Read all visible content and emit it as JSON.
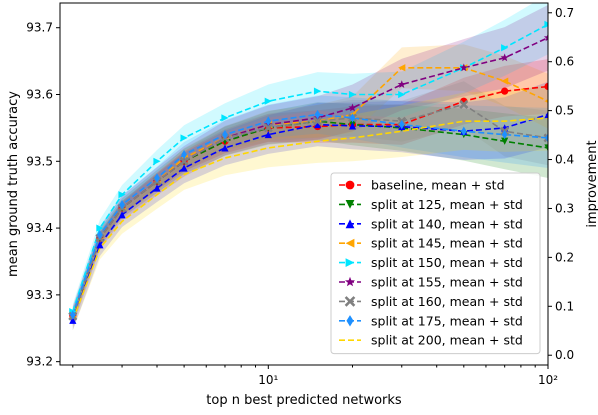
{
  "chart_data": {
    "type": "line",
    "xscale": "log",
    "xlabel": "top n best predicted networks",
    "ylabel": "mean ground truth accuracy",
    "ylabel_right": "improvement",
    "xlim": [
      1.8,
      100
    ],
    "ylim": [
      93.195,
      93.737
    ],
    "ylim_right": [
      -0.02,
      0.72
    ],
    "x_ticks": [
      {
        "value": 10,
        "label": "10¹"
      },
      {
        "value": 100,
        "label": "10²"
      }
    ],
    "y_ticks": [
      {
        "value": 93.2,
        "label": "93.2"
      },
      {
        "value": 93.3,
        "label": "93.3"
      },
      {
        "value": 93.4,
        "label": "93.4"
      },
      {
        "value": 93.5,
        "label": "93.5"
      },
      {
        "value": 93.6,
        "label": "93.6"
      },
      {
        "value": 93.7,
        "label": "93.7"
      }
    ],
    "y_ticks_right": [
      {
        "value": 0.0,
        "label": "0.0"
      },
      {
        "value": 0.1,
        "label": "0.1"
      },
      {
        "value": 0.2,
        "label": "0.2"
      },
      {
        "value": 0.3,
        "label": "0.3"
      },
      {
        "value": 0.4,
        "label": "0.4"
      },
      {
        "value": 0.5,
        "label": "0.5"
      },
      {
        "value": 0.6,
        "label": "0.6"
      },
      {
        "value": 0.7,
        "label": "0.7"
      }
    ],
    "legend_position": "lower-right",
    "grid": false,
    "series": [
      {
        "name": "baseline, mean + std",
        "color": "#ff0000",
        "marker": "circle",
        "points": [
          [
            2,
            93.268
          ],
          [
            2.5,
            93.385
          ],
          [
            3,
            93.43
          ],
          [
            4,
            93.47
          ],
          [
            5,
            93.5
          ],
          [
            7,
            93.53
          ],
          [
            10,
            93.55
          ],
          [
            15,
            93.552
          ],
          [
            20,
            93.555
          ],
          [
            30,
            93.555
          ],
          [
            50,
            93.59
          ],
          [
            70,
            93.605
          ],
          [
            100,
            93.612
          ]
        ]
      },
      {
        "name": "split at 125, mean + std",
        "color": "#008000",
        "marker": "triangle-down",
        "points": [
          [
            2,
            93.268
          ],
          [
            2.5,
            93.385
          ],
          [
            3,
            93.43
          ],
          [
            4,
            93.47
          ],
          [
            5,
            93.5
          ],
          [
            7,
            93.53
          ],
          [
            10,
            93.55
          ],
          [
            15,
            93.56
          ],
          [
            20,
            93.555
          ],
          [
            30,
            93.55
          ],
          [
            50,
            93.54
          ],
          [
            70,
            93.53
          ],
          [
            100,
            93.52
          ]
        ]
      },
      {
        "name": "split at 140, mean + std",
        "color": "#0000ff",
        "marker": "triangle-up",
        "points": [
          [
            2,
            93.262
          ],
          [
            2.5,
            93.375
          ],
          [
            3,
            93.42
          ],
          [
            4,
            93.46
          ],
          [
            5,
            93.49
          ],
          [
            7,
            93.52
          ],
          [
            10,
            93.54
          ],
          [
            15,
            93.555
          ],
          [
            20,
            93.553
          ],
          [
            30,
            93.552
          ],
          [
            50,
            93.545
          ],
          [
            70,
            93.55
          ],
          [
            100,
            93.57
          ]
        ]
      },
      {
        "name": "split at 145, mean + std",
        "color": "#ffa500",
        "marker": "triangle-left",
        "points": [
          [
            2,
            93.268
          ],
          [
            2.5,
            93.385
          ],
          [
            3,
            93.43
          ],
          [
            4,
            93.47
          ],
          [
            5,
            93.505
          ],
          [
            7,
            93.535
          ],
          [
            10,
            93.555
          ],
          [
            15,
            93.56
          ],
          [
            20,
            93.57
          ],
          [
            30,
            93.64
          ],
          [
            50,
            93.64
          ],
          [
            70,
            93.62
          ],
          [
            100,
            93.59
          ]
        ]
      },
      {
        "name": "split at 150, mean + std",
        "color": "#00e5ff",
        "marker": "triangle-right",
        "points": [
          [
            2,
            93.275
          ],
          [
            2.5,
            93.4
          ],
          [
            3,
            93.45
          ],
          [
            4,
            93.5
          ],
          [
            5,
            93.535
          ],
          [
            7,
            93.565
          ],
          [
            10,
            93.59
          ],
          [
            15,
            93.605
          ],
          [
            20,
            93.6
          ],
          [
            30,
            93.6
          ],
          [
            50,
            93.64
          ],
          [
            70,
            93.67
          ],
          [
            100,
            93.705
          ]
        ]
      },
      {
        "name": "split at 155, mean + std",
        "color": "#800080",
        "marker": "star",
        "points": [
          [
            2,
            93.268
          ],
          [
            2.5,
            93.385
          ],
          [
            3,
            93.43
          ],
          [
            4,
            93.47
          ],
          [
            5,
            93.5
          ],
          [
            7,
            93.535
          ],
          [
            10,
            93.555
          ],
          [
            15,
            93.565
          ],
          [
            20,
            93.58
          ],
          [
            30,
            93.615
          ],
          [
            50,
            93.64
          ],
          [
            70,
            93.655
          ],
          [
            100,
            93.685
          ]
        ]
      },
      {
        "name": "split at 160, mean + std",
        "color": "#808080",
        "marker": "x",
        "points": [
          [
            2,
            93.268
          ],
          [
            2.5,
            93.385
          ],
          [
            3,
            93.43
          ],
          [
            4,
            93.47
          ],
          [
            5,
            93.5
          ],
          [
            7,
            93.535
          ],
          [
            10,
            93.55
          ],
          [
            15,
            93.56
          ],
          [
            20,
            93.565
          ],
          [
            30,
            93.56
          ],
          [
            50,
            93.585
          ],
          [
            70,
            93.545
          ],
          [
            100,
            93.535
          ]
        ]
      },
      {
        "name": "split at 175, mean + std",
        "color": "#1e90ff",
        "marker": "diamond",
        "points": [
          [
            2,
            93.27
          ],
          [
            2.5,
            93.39
          ],
          [
            3,
            93.435
          ],
          [
            4,
            93.475
          ],
          [
            5,
            93.51
          ],
          [
            7,
            93.54
          ],
          [
            10,
            93.56
          ],
          [
            15,
            93.57
          ],
          [
            20,
            93.565
          ],
          [
            30,
            93.555
          ],
          [
            50,
            93.545
          ],
          [
            70,
            93.54
          ],
          [
            100,
            93.535
          ]
        ]
      },
      {
        "name": "split at 200, mean + std",
        "color": "#ffd700",
        "marker": "none",
        "points": [
          [
            2,
            93.262
          ],
          [
            2.5,
            93.37
          ],
          [
            3,
            93.41
          ],
          [
            4,
            93.45
          ],
          [
            5,
            93.48
          ],
          [
            7,
            93.505
          ],
          [
            10,
            93.52
          ],
          [
            15,
            93.53
          ],
          [
            20,
            93.535
          ],
          [
            30,
            93.545
          ],
          [
            50,
            93.56
          ],
          [
            70,
            93.56
          ],
          [
            100,
            93.565
          ]
        ]
      }
    ]
  }
}
